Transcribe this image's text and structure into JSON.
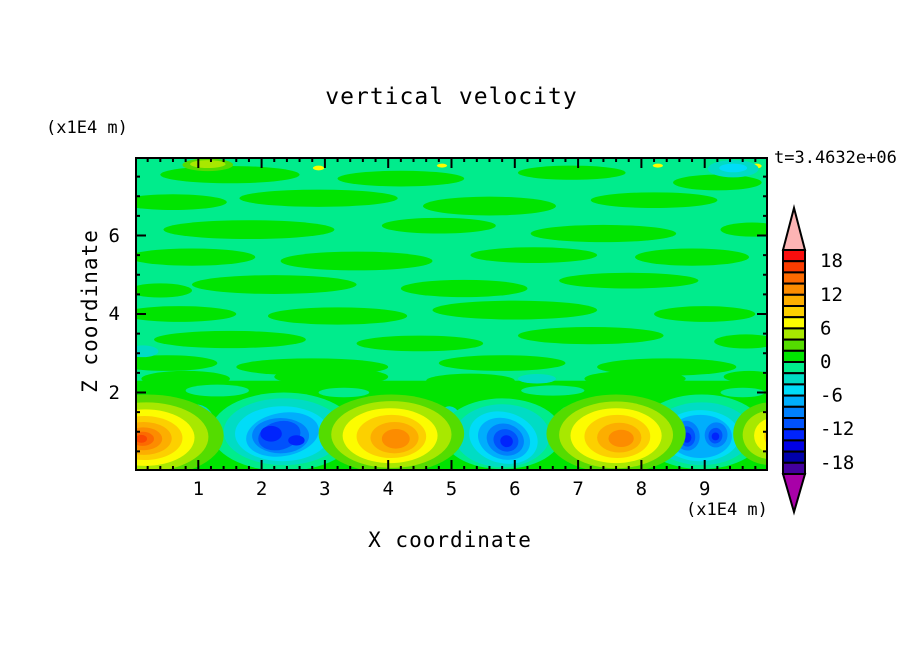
{
  "title": "vertical velocity",
  "time_label": "t=3.4632e+06",
  "x_axis": {
    "label": "X coordinate",
    "unit": "(x1E4 m)"
  },
  "z_axis": {
    "label": "Z coordinate",
    "unit": "(x1E4 m)"
  },
  "chart_data": {
    "type": "heatmap",
    "title": "vertical velocity",
    "xlabel": "X coordinate",
    "ylabel": "Z coordinate",
    "x_units": "(x1E4 m)",
    "y_units": "(x1E4 m)",
    "time_annotation": "t=3.4632e+06",
    "xlim": [
      0,
      10
    ],
    "ylim": [
      0,
      8
    ],
    "x_ticks": [
      1,
      2,
      3,
      4,
      5,
      6,
      7,
      8,
      9
    ],
    "y_ticks": [
      2,
      4,
      6
    ],
    "x_minor_step": 0.2,
    "y_minor_step": 0.5,
    "grid": false,
    "colorbar": {
      "position": "right",
      "level_min": -20,
      "level_max": 20,
      "level_step": 2,
      "tick_values": [
        18,
        12,
        6,
        0,
        -6,
        -12,
        -18
      ],
      "tick_labels": [
        "18",
        "12",
        "6",
        "0",
        "-6",
        "-12",
        "-18"
      ],
      "colors_top_to_bottom": [
        "#F80E0E",
        "#FA3C00",
        "#FC6A00",
        "#FC8C00",
        "#FCAE00",
        "#FCD000",
        "#FCFC00",
        "#A8E800",
        "#54DC00",
        "#00E400",
        "#00EC8C",
        "#00DCC4",
        "#00DCF8",
        "#00AEFC",
        "#0080FC",
        "#0052FC",
        "#0024FC",
        "#0000E4",
        "#0000AA",
        "#44009E"
      ],
      "over_arrow_color": "#FCB4B4",
      "under_arrow_color": "#A800A8"
    },
    "field_summary": {
      "background_range": "values between -2 and 2 (interleaved green streaks) above z=2",
      "features": [
        {
          "x": 0.2,
          "z": 0.85,
          "peak_value": 16,
          "kind": "updraft"
        },
        {
          "x": 2.35,
          "z": 0.9,
          "peak_value": -14,
          "kind": "downdraft"
        },
        {
          "x": 4.05,
          "z": 0.9,
          "peak_value": 13,
          "kind": "updraft"
        },
        {
          "x": 5.8,
          "z": 0.8,
          "peak_value": -14,
          "kind": "downdraft"
        },
        {
          "x": 7.6,
          "z": 0.85,
          "peak_value": 13,
          "kind": "updraft"
        },
        {
          "x": 8.95,
          "z": 0.9,
          "peak_value": -14,
          "kind": "downdraft"
        },
        {
          "x": 10.0,
          "z": 0.9,
          "peak_value": 9,
          "kind": "updraft"
        }
      ]
    },
    "render": {
      "bg": "#00EC8C",
      "bottom_band": {
        "color": "#00E400",
        "z_top": 2.3
      },
      "blobs": [
        {
          "x": 1.5,
          "z": 7.55,
          "rx": 1.1,
          "ry": 0.22,
          "fill": "#00E400"
        },
        {
          "x": 4.2,
          "z": 7.45,
          "rx": 1.0,
          "ry": 0.2,
          "fill": "#00E400"
        },
        {
          "x": 6.9,
          "z": 7.6,
          "rx": 0.85,
          "ry": 0.18,
          "fill": "#00E400"
        },
        {
          "x": 9.2,
          "z": 7.35,
          "rx": 0.7,
          "ry": 0.2,
          "fill": "#00E400"
        },
        {
          "x": 0.6,
          "z": 6.85,
          "rx": 0.85,
          "ry": 0.2,
          "fill": "#00E400"
        },
        {
          "x": 2.9,
          "z": 6.95,
          "rx": 1.25,
          "ry": 0.22,
          "fill": "#00E400"
        },
        {
          "x": 5.6,
          "z": 6.75,
          "rx": 1.05,
          "ry": 0.24,
          "fill": "#00E400"
        },
        {
          "x": 8.2,
          "z": 6.9,
          "rx": 1.0,
          "ry": 0.2,
          "fill": "#00E400"
        },
        {
          "x": 1.8,
          "z": 6.15,
          "rx": 1.35,
          "ry": 0.24,
          "fill": "#00E400"
        },
        {
          "x": 4.8,
          "z": 6.25,
          "rx": 0.9,
          "ry": 0.2,
          "fill": "#00E400"
        },
        {
          "x": 7.4,
          "z": 6.05,
          "rx": 1.15,
          "ry": 0.22,
          "fill": "#00E400"
        },
        {
          "x": 9.75,
          "z": 6.15,
          "rx": 0.5,
          "ry": 0.18,
          "fill": "#00E400"
        },
        {
          "x": 0.9,
          "z": 5.45,
          "rx": 1.0,
          "ry": 0.22,
          "fill": "#00E400"
        },
        {
          "x": 3.5,
          "z": 5.35,
          "rx": 1.2,
          "ry": 0.24,
          "fill": "#00E400"
        },
        {
          "x": 6.3,
          "z": 5.5,
          "rx": 1.0,
          "ry": 0.2,
          "fill": "#00E400"
        },
        {
          "x": 8.8,
          "z": 5.45,
          "rx": 0.9,
          "ry": 0.22,
          "fill": "#00E400"
        },
        {
          "x": 2.2,
          "z": 4.75,
          "rx": 1.3,
          "ry": 0.24,
          "fill": "#00E400"
        },
        {
          "x": 5.2,
          "z": 4.65,
          "rx": 1.0,
          "ry": 0.22,
          "fill": "#00E400"
        },
        {
          "x": 7.8,
          "z": 4.85,
          "rx": 1.1,
          "ry": 0.2,
          "fill": "#00E400"
        },
        {
          "x": 0.4,
          "z": 4.6,
          "rx": 0.5,
          "ry": 0.18,
          "fill": "#00E400"
        },
        {
          "x": 0.7,
          "z": 4.0,
          "rx": 0.9,
          "ry": 0.2,
          "fill": "#00E400"
        },
        {
          "x": 3.2,
          "z": 3.95,
          "rx": 1.1,
          "ry": 0.22,
          "fill": "#00E400"
        },
        {
          "x": 6.0,
          "z": 4.1,
          "rx": 1.3,
          "ry": 0.24,
          "fill": "#00E400"
        },
        {
          "x": 9.0,
          "z": 4.0,
          "rx": 0.8,
          "ry": 0.2,
          "fill": "#00E400"
        },
        {
          "x": 1.5,
          "z": 3.35,
          "rx": 1.2,
          "ry": 0.22,
          "fill": "#00E400"
        },
        {
          "x": 4.5,
          "z": 3.25,
          "rx": 1.0,
          "ry": 0.2,
          "fill": "#00E400"
        },
        {
          "x": 7.2,
          "z": 3.45,
          "rx": 1.15,
          "ry": 0.22,
          "fill": "#00E400"
        },
        {
          "x": 9.65,
          "z": 3.3,
          "rx": 0.5,
          "ry": 0.18,
          "fill": "#00E400"
        },
        {
          "x": 0.5,
          "z": 2.75,
          "rx": 0.8,
          "ry": 0.2,
          "fill": "#00E400"
        },
        {
          "x": 2.8,
          "z": 2.65,
          "rx": 1.2,
          "ry": 0.22,
          "fill": "#00E400"
        },
        {
          "x": 5.8,
          "z": 2.75,
          "rx": 1.0,
          "ry": 0.2,
          "fill": "#00E400"
        },
        {
          "x": 8.4,
          "z": 2.65,
          "rx": 1.1,
          "ry": 0.22,
          "fill": "#00E400"
        },
        {
          "x": 0.8,
          "z": 2.35,
          "rx": 0.7,
          "ry": 0.2,
          "fill": "#00E400"
        },
        {
          "x": 3.1,
          "z": 2.4,
          "rx": 0.9,
          "ry": 0.22,
          "fill": "#00E400"
        },
        {
          "x": 5.3,
          "z": 2.3,
          "rx": 0.7,
          "ry": 0.18,
          "fill": "#00E400"
        },
        {
          "x": 7.9,
          "z": 2.35,
          "rx": 0.8,
          "ry": 0.2,
          "fill": "#00E400"
        },
        {
          "x": 9.7,
          "z": 2.4,
          "rx": 0.4,
          "ry": 0.15,
          "fill": "#00E400"
        },
        {
          "x": 0.12,
          "z": 3.05,
          "rx": 0.25,
          "ry": 0.15,
          "fill": "#00DCC4"
        },
        {
          "x": 6.35,
          "z": 2.35,
          "rx": 0.3,
          "ry": 0.12,
          "fill": "#00DCC4"
        },
        {
          "x": 1.3,
          "z": 2.05,
          "rx": 0.5,
          "ry": 0.15,
          "fill": "#00EC8C"
        },
        {
          "x": 3.3,
          "z": 2.0,
          "rx": 0.4,
          "ry": 0.12,
          "fill": "#00EC8C"
        },
        {
          "x": 6.6,
          "z": 2.05,
          "rx": 0.5,
          "ry": 0.13,
          "fill": "#00EC8C"
        },
        {
          "x": 9.6,
          "z": 2.0,
          "rx": 0.35,
          "ry": 0.12,
          "fill": "#00EC8C"
        },
        {
          "x": 1.15,
          "z": 7.8,
          "rx": 0.4,
          "ry": 0.16,
          "fill": "#54DC00"
        },
        {
          "x": 1.15,
          "z": 7.82,
          "rx": 0.28,
          "ry": 0.1,
          "fill": "#A8E800"
        },
        {
          "x": 2.9,
          "z": 7.72,
          "rx": 0.09,
          "ry": 0.06,
          "fill": "#FCFC00"
        },
        {
          "x": 4.85,
          "z": 7.78,
          "rx": 0.08,
          "ry": 0.05,
          "fill": "#FCFC00"
        },
        {
          "x": 8.26,
          "z": 7.78,
          "rx": 0.08,
          "ry": 0.05,
          "fill": "#FCFC00"
        },
        {
          "x": 9.82,
          "z": 7.77,
          "rx": 0.08,
          "ry": 0.06,
          "fill": "#FCFC00"
        },
        {
          "x": 9.45,
          "z": 7.7,
          "rx": 0.4,
          "ry": 0.22,
          "fill": "#00DCC4"
        },
        {
          "x": 9.45,
          "z": 7.72,
          "rx": 0.22,
          "ry": 0.11,
          "fill": "#00DCF8"
        },
        {
          "x": 0.95,
          "z": 1.25,
          "rx": 0.3,
          "ry": 0.45,
          "fill": "#00DCC4"
        },
        {
          "x": 0.95,
          "z": 1.2,
          "rx": 0.15,
          "ry": 0.25,
          "fill": "#00DCF8"
        },
        {
          "x": 4.95,
          "z": 1.1,
          "rx": 0.22,
          "ry": 0.55,
          "rot": 5,
          "fill": "#00DCC4"
        },
        {
          "x": 4.97,
          "z": 1.0,
          "rx": 0.1,
          "ry": 0.3,
          "fill": "#00DCF8"
        },
        {
          "x": 6.85,
          "z": 1.2,
          "rx": 0.2,
          "ry": 0.45,
          "fill": "#00DCC4"
        },
        {
          "x": 9.55,
          "z": 1.2,
          "rx": 0.2,
          "ry": 0.4,
          "fill": "#00DCC4"
        },
        {
          "x": 1.72,
          "z": 1.62,
          "rx": 0.2,
          "ry": 0.12,
          "fill": "#54DC00"
        },
        {
          "x": 5.43,
          "z": 1.52,
          "rx": 0.24,
          "ry": 0.2,
          "fill": "#54DC00"
        },
        {
          "x": 5.43,
          "z": 1.52,
          "rx": 0.15,
          "ry": 0.13,
          "fill": "#A8E800"
        },
        {
          "x": 2.35,
          "z": 1.0,
          "rx": 1.15,
          "ry": 1.0,
          "fill": "#00EC8C"
        },
        {
          "x": 2.35,
          "z": 1.0,
          "rx": 0.95,
          "ry": 0.85,
          "fill": "#00DCC4"
        },
        {
          "x": 2.33,
          "z": 0.95,
          "rx": 0.75,
          "ry": 0.7,
          "fill": "#00DCF8"
        },
        {
          "x": 2.33,
          "z": 0.93,
          "rx": 0.58,
          "ry": 0.55,
          "rot": -10,
          "fill": "#00AEFC"
        },
        {
          "x": 2.3,
          "z": 0.9,
          "rx": 0.45,
          "ry": 0.45,
          "fill": "#0080FC"
        },
        {
          "x": 2.28,
          "z": 0.9,
          "rx": 0.34,
          "ry": 0.36,
          "rot": -15,
          "fill": "#0052FC"
        },
        {
          "x": 2.15,
          "z": 0.95,
          "rx": 0.17,
          "ry": 0.2,
          "fill": "#0024FC"
        },
        {
          "x": 2.55,
          "z": 0.78,
          "rx": 0.13,
          "ry": 0.13,
          "fill": "#0024FC"
        },
        {
          "x": 5.8,
          "z": 0.95,
          "rx": 0.95,
          "ry": 0.9,
          "fill": "#00EC8C"
        },
        {
          "x": 5.8,
          "z": 0.9,
          "rx": 0.75,
          "ry": 0.8,
          "fill": "#00DCC4"
        },
        {
          "x": 5.82,
          "z": 0.85,
          "rx": 0.55,
          "ry": 0.65,
          "rot": 15,
          "fill": "#00DCF8"
        },
        {
          "x": 5.83,
          "z": 0.82,
          "rx": 0.42,
          "ry": 0.52,
          "rot": 18,
          "fill": "#00AEFC"
        },
        {
          "x": 5.85,
          "z": 0.8,
          "rx": 0.3,
          "ry": 0.4,
          "rot": 20,
          "fill": "#0080FC"
        },
        {
          "x": 5.86,
          "z": 0.78,
          "rx": 0.2,
          "ry": 0.28,
          "rot": 20,
          "fill": "#0052FC"
        },
        {
          "x": 5.87,
          "z": 0.76,
          "rx": 0.1,
          "ry": 0.15,
          "rot": 20,
          "fill": "#0024FC"
        },
        {
          "x": 8.95,
          "z": 1.0,
          "rx": 1.0,
          "ry": 0.95,
          "fill": "#00EC8C"
        },
        {
          "x": 8.95,
          "z": 0.95,
          "rx": 0.8,
          "ry": 0.8,
          "fill": "#00DCC4"
        },
        {
          "x": 8.93,
          "z": 0.9,
          "rx": 0.62,
          "ry": 0.65,
          "fill": "#00DCF8"
        },
        {
          "x": 8.93,
          "z": 0.88,
          "rx": 0.5,
          "ry": 0.55,
          "fill": "#00AEFC"
        },
        {
          "x": 8.72,
          "z": 0.9,
          "rx": 0.2,
          "ry": 0.38,
          "rot": -8,
          "fill": "#0080FC"
        },
        {
          "x": 9.18,
          "z": 0.92,
          "rx": 0.18,
          "ry": 0.32,
          "rot": 8,
          "fill": "#0080FC"
        },
        {
          "x": 8.72,
          "z": 0.88,
          "rx": 0.13,
          "ry": 0.26,
          "rot": -8,
          "fill": "#0052FC"
        },
        {
          "x": 9.17,
          "z": 0.9,
          "rx": 0.11,
          "ry": 0.2,
          "rot": 8,
          "fill": "#0052FC"
        },
        {
          "x": 8.72,
          "z": 0.85,
          "rx": 0.07,
          "ry": 0.13,
          "fill": "#0024FC"
        },
        {
          "x": 9.17,
          "z": 0.88,
          "rx": 0.06,
          "ry": 0.1,
          "fill": "#0024FC"
        },
        {
          "x": 0.2,
          "z": 0.9,
          "rx": 1.2,
          "ry": 1.05,
          "fill": "#54DC00"
        },
        {
          "x": 0.18,
          "z": 0.87,
          "rx": 0.98,
          "ry": 0.88,
          "fill": "#A8E800"
        },
        {
          "x": 0.16,
          "z": 0.85,
          "rx": 0.78,
          "ry": 0.72,
          "fill": "#FCFC00"
        },
        {
          "x": 0.15,
          "z": 0.84,
          "rx": 0.6,
          "ry": 0.56,
          "fill": "#FCD000"
        },
        {
          "x": 0.14,
          "z": 0.83,
          "rx": 0.44,
          "ry": 0.42,
          "fill": "#FCAE00"
        },
        {
          "x": 0.13,
          "z": 0.82,
          "rx": 0.3,
          "ry": 0.29,
          "fill": "#FC8C00"
        },
        {
          "x": 0.12,
          "z": 0.82,
          "rx": 0.18,
          "ry": 0.18,
          "fill": "#FC6A00"
        },
        {
          "x": 0.1,
          "z": 0.82,
          "rx": 0.09,
          "ry": 0.1,
          "fill": "#FA4800"
        },
        {
          "x": 4.05,
          "z": 0.95,
          "rx": 1.15,
          "ry": 1.0,
          "fill": "#54DC00"
        },
        {
          "x": 4.05,
          "z": 0.93,
          "rx": 0.95,
          "ry": 0.85,
          "fill": "#A8E800"
        },
        {
          "x": 4.03,
          "z": 0.9,
          "rx": 0.75,
          "ry": 0.7,
          "fill": "#FCFC00"
        },
        {
          "x": 4.05,
          "z": 0.88,
          "rx": 0.55,
          "ry": 0.55,
          "fill": "#FCD000"
        },
        {
          "x": 4.1,
          "z": 0.85,
          "rx": 0.38,
          "ry": 0.4,
          "fill": "#FCAE00"
        },
        {
          "x": 4.12,
          "z": 0.82,
          "rx": 0.22,
          "ry": 0.25,
          "fill": "#FC8C00"
        },
        {
          "x": 7.6,
          "z": 0.95,
          "rx": 1.1,
          "ry": 1.0,
          "fill": "#54DC00"
        },
        {
          "x": 7.6,
          "z": 0.92,
          "rx": 0.9,
          "ry": 0.85,
          "fill": "#A8E800"
        },
        {
          "x": 7.6,
          "z": 0.9,
          "rx": 0.72,
          "ry": 0.7,
          "fill": "#FCFC00"
        },
        {
          "x": 7.62,
          "z": 0.88,
          "rx": 0.52,
          "ry": 0.55,
          "fill": "#FCD000"
        },
        {
          "x": 7.65,
          "z": 0.85,
          "rx": 0.35,
          "ry": 0.38,
          "fill": "#FCAE00"
        },
        {
          "x": 7.68,
          "z": 0.83,
          "rx": 0.2,
          "ry": 0.22,
          "fill": "#FC8C00"
        },
        {
          "x": 10.05,
          "z": 0.95,
          "rx": 0.6,
          "ry": 0.8,
          "fill": "#54DC00"
        },
        {
          "x": 10.05,
          "z": 0.92,
          "rx": 0.45,
          "ry": 0.62,
          "fill": "#A8E800"
        },
        {
          "x": 10.08,
          "z": 0.9,
          "rx": 0.3,
          "ry": 0.45,
          "fill": "#FCFC00"
        },
        {
          "x": 10.1,
          "z": 0.88,
          "rx": 0.16,
          "ry": 0.28,
          "fill": "#FCD000"
        }
      ]
    }
  }
}
